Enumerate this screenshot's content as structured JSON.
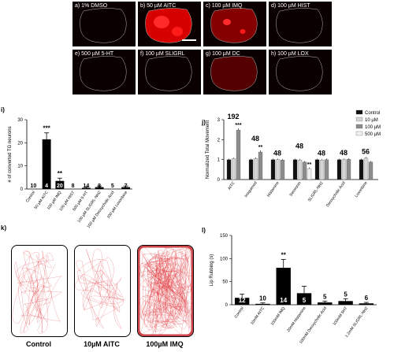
{
  "images": [
    {
      "letter": "a)",
      "label": "1% DMSO",
      "intensity": 0.05
    },
    {
      "letter": "b)",
      "label": "50 µM AITC",
      "intensity": 1.0
    },
    {
      "letter": "c)",
      "label": "100 µM IMQ",
      "intensity": 0.5
    },
    {
      "letter": "d)",
      "label": "100 µM HIST",
      "intensity": 0.05
    },
    {
      "letter": "e)",
      "label": "500 µM 5-HT",
      "intensity": 0.05
    },
    {
      "letter": "f)",
      "label": "100 µM SLIGRL",
      "intensity": 0.08
    },
    {
      "letter": "g)",
      "label": "100 µM DC",
      "intensity": 0.2
    },
    {
      "letter": "h)",
      "label": "100 µM LOX",
      "intensity": 0.08
    }
  ],
  "chart_data": [
    {
      "letter": "i)",
      "type": "bar",
      "ylabel": "# of converted TG neurons",
      "ylim": [
        0,
        30
      ],
      "yticks": [
        0,
        10,
        20,
        30
      ],
      "categories": [
        "Control",
        "50 µM AITC",
        "100 µM IMQ",
        "100 µM HIST",
        "500 µM 5-HT",
        "100 µM SLIGRL-NH2",
        "100 µM Deoxycholic Acid",
        "100 µM Loxoribine"
      ],
      "values": [
        0,
        21.5,
        3.5,
        0,
        0.5,
        0.8,
        0,
        0.8
      ],
      "errors": [
        0,
        2.8,
        1.2,
        0,
        0.4,
        0.5,
        0,
        0.5
      ],
      "n_labels": [
        "10",
        "4",
        "20",
        "8",
        "14",
        "8",
        "5",
        "7"
      ],
      "significance": [
        "",
        "***",
        "**",
        "",
        "",
        "",
        "",
        ""
      ]
    },
    {
      "letter": "j)",
      "type": "bar",
      "ylabel": "Normalized Total Movement",
      "ylim": [
        0,
        3
      ],
      "yticks": [
        0,
        1,
        2,
        3
      ],
      "legend_position": "top-right",
      "series_names": [
        "Control",
        "10 µM",
        "100 µM",
        "500 µM"
      ],
      "series_colors": [
        "#111111",
        "#d5d5d5",
        "#8c8c8c",
        "#efefef"
      ],
      "groups": [
        {
          "name": "AITC",
          "values": [
            1.0,
            1.05,
            2.48
          ],
          "errors": [
            0.05,
            0.05,
            0.08
          ],
          "n": "192",
          "stars": [
            "",
            "",
            "***"
          ]
        },
        {
          "name": "Imiquimod",
          "values": [
            1.0,
            1.05,
            1.38
          ],
          "errors": [
            0.05,
            0.06,
            0.08
          ],
          "n": "48",
          "stars": [
            "",
            "",
            "**"
          ]
        },
        {
          "name": "Histamine",
          "values": [
            1.0,
            1.0,
            0.98
          ],
          "errors": [
            0.05,
            0.05,
            0.05
          ],
          "n": "48",
          "stars": [
            "",
            "",
            ""
          ]
        },
        {
          "name": "Serotonin",
          "values": [
            1.0,
            0.98,
            0.88,
            0.55
          ],
          "errors": [
            0.05,
            0.05,
            0.05,
            0.05
          ],
          "n": "48",
          "stars": [
            "",
            "",
            "",
            "**"
          ]
        },
        {
          "name": "SLIGRL-NH2",
          "values": [
            1.0,
            0.98,
            1.0
          ],
          "errors": [
            0.05,
            0.05,
            0.05
          ],
          "n": "48",
          "stars": [
            "",
            "",
            ""
          ]
        },
        {
          "name": "Deoxycholic Acid",
          "values": [
            1.0,
            1.0,
            1.02
          ],
          "errors": [
            0.05,
            0.05,
            0.05
          ],
          "n": "48",
          "stars": [
            "",
            "",
            ""
          ]
        },
        {
          "name": "Loxoribine",
          "values": [
            1.0,
            1.08,
            0.88
          ],
          "errors": [
            0.05,
            0.05,
            0.05
          ],
          "n": "56",
          "stars": [
            "",
            "",
            ""
          ]
        }
      ]
    },
    {
      "letter": "l)",
      "type": "bar",
      "ylabel": "Lip Rubbing (s)",
      "ylim": [
        0,
        150
      ],
      "yticks": [
        0,
        50,
        100,
        150
      ],
      "categories": [
        "Control",
        "10mM AITC",
        "100mM IMQ",
        "20mM Histamine",
        "100mM Deoxycholic Acid",
        "100mM 5HT",
        "1.2mM SLIGRL-NH2"
      ],
      "values": [
        15,
        2,
        80,
        25,
        5,
        8,
        3
      ],
      "errors": [
        8,
        2,
        18,
        15,
        3,
        5,
        2
      ],
      "n_labels": [
        "12",
        "10",
        "14",
        "5",
        "5",
        "5",
        "6"
      ],
      "significance": [
        "",
        "",
        "**",
        "",
        "",
        "",
        ""
      ]
    }
  ],
  "traces": {
    "letter": "k)",
    "panels": [
      {
        "label": "Control",
        "density": 55
      },
      {
        "label": "10µM AITC",
        "density": 45
      },
      {
        "label": "100µM IMQ",
        "density": 260
      }
    ]
  }
}
